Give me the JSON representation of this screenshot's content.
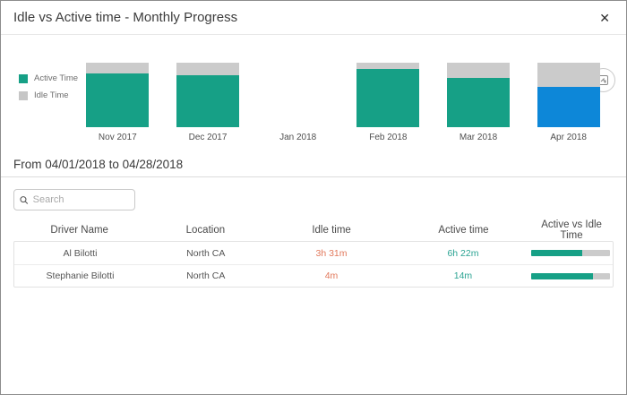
{
  "modal": {
    "title": "Idle vs Active time - Monthly Progress",
    "close_glyph": "✕"
  },
  "toolbar": {
    "export_icon": "export-image-icon"
  },
  "chart_data": {
    "type": "bar",
    "stacked": true,
    "title": "Idle vs Active time - Monthly Progress",
    "categories": [
      "Nov 2017",
      "Dec 2017",
      "Jan 2018",
      "Feb 2018",
      "Mar 2018",
      "Apr 2018"
    ],
    "series": [
      {
        "name": "Active Time",
        "values": [
          84,
          80,
          null,
          90,
          76,
          62
        ]
      },
      {
        "name": "Idle Time",
        "values": [
          16,
          20,
          null,
          10,
          24,
          38
        ]
      }
    ],
    "unit": "percent of total bar height",
    "selected_category": "Apr 2018",
    "colors": {
      "active": "#16a086",
      "idle": "#cbcbcb",
      "selected_active": "#0d87d8"
    },
    "legend_position": "left",
    "grid": false
  },
  "legend": {
    "items": [
      {
        "label": "Active Time",
        "color": "#16a086"
      },
      {
        "label": "Idle Time",
        "color": "#c6c6c6"
      }
    ]
  },
  "section": {
    "date_range": "From 04/01/2018 to 04/28/2018"
  },
  "search": {
    "placeholder": "Search"
  },
  "table": {
    "columns": [
      "Driver Name",
      "Location",
      "Idle time",
      "Active time",
      "Active vs Idle Time"
    ],
    "rows": [
      {
        "driver": "Al Bilotti",
        "location": "North CA",
        "idle": "3h 31m",
        "active": "6h 22m",
        "active_pct": 64
      },
      {
        "driver": "Stephanie Bilotti",
        "location": "North CA",
        "idle": "4m",
        "active": "14m",
        "active_pct": 78
      }
    ]
  }
}
